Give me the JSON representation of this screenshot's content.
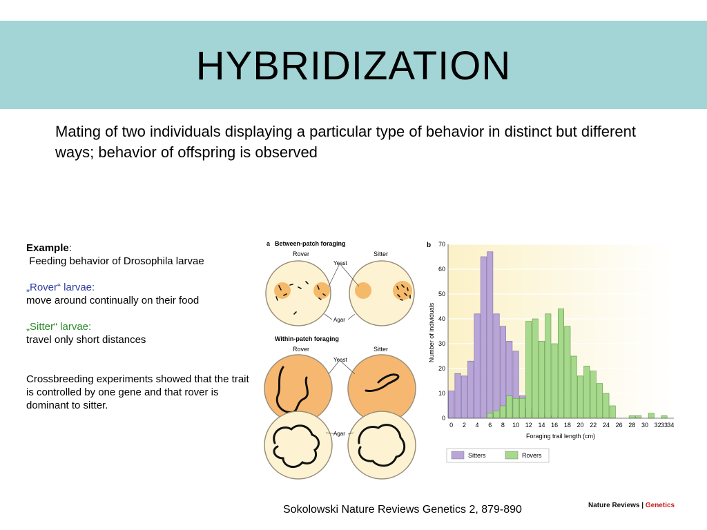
{
  "slide": {
    "title": "HYBRIDIZATION",
    "subtitle": "Mating of two individuals displaying a particular type of behavior in distinct but different ways; behavior of offspring is observed",
    "example_label": "Example",
    "example_colon": ":",
    "example_text": "Feeding behavior of Drosophila larvae",
    "rover_heading": "„Rover“ larvae:",
    "rover_text": "move around continually on their food",
    "sitter_heading": "„Sitter“ larvae:",
    "sitter_text": "travel only short distances",
    "crossbreeding_text": "Crossbreeding experiments showed that the trait is controlled by one gene and that rover is dominant to sitter.",
    "citation": "Sokolowski Nature Reviews Genetics 2, 879-890",
    "journal_brand": "Nature Reviews",
    "journal_separator": "|",
    "journal_section": "Genetics"
  },
  "figure_a": {
    "panel_label": "a",
    "between_title": "Between-patch foraging",
    "within_title": "Within-patch foraging",
    "rover_label": "Rover",
    "sitter_label": "Sitter",
    "rover_label_2": "Rover",
    "sitter_label_2": "Sitter",
    "yeast_label": "Yeast",
    "yeast_label_2": "Yeast",
    "agar_label": "Agar",
    "agar_label_2": "Agar"
  },
  "chart_data": {
    "type": "bar",
    "panel_label": "b",
    "xlabel": "Foraging trail length (cm)",
    "ylabel": "Number of individuals",
    "ylim": [
      0,
      70
    ],
    "yticks": [
      0,
      10,
      20,
      30,
      40,
      50,
      60,
      70
    ],
    "xticks": [
      0,
      2,
      4,
      6,
      8,
      10,
      12,
      14,
      16,
      18,
      20,
      22,
      24,
      26,
      28,
      30,
      32,
      33,
      34
    ],
    "x": [
      0,
      1,
      2,
      3,
      4,
      5,
      6,
      7,
      8,
      9,
      10,
      11,
      12,
      13,
      14,
      15,
      16,
      17,
      18,
      19,
      20,
      21,
      22,
      23,
      24,
      25,
      26,
      27,
      28,
      29,
      30,
      31,
      32,
      33,
      34
    ],
    "legend_position": "bottom",
    "colors": {
      "sitters": "#b9a6d9",
      "rovers": "#a6d98c",
      "background": "#fbf1c7"
    },
    "series": [
      {
        "name": "Sitters",
        "values": [
          11,
          18,
          17,
          23,
          42,
          65,
          67,
          42,
          37,
          31,
          27,
          9,
          4,
          3,
          2,
          1,
          1,
          0,
          0,
          0,
          0,
          0,
          0,
          0,
          0,
          0,
          0,
          0,
          0,
          0,
          0,
          0,
          0,
          0,
          0
        ]
      },
      {
        "name": "Rovers",
        "values": [
          0,
          0,
          0,
          0,
          0,
          0,
          2,
          3,
          5,
          9,
          8,
          8,
          39,
          40,
          31,
          42,
          30,
          44,
          37,
          25,
          17,
          21,
          19,
          14,
          10,
          5,
          0,
          0,
          1,
          1,
          0,
          2,
          0,
          1,
          0
        ]
      }
    ]
  }
}
